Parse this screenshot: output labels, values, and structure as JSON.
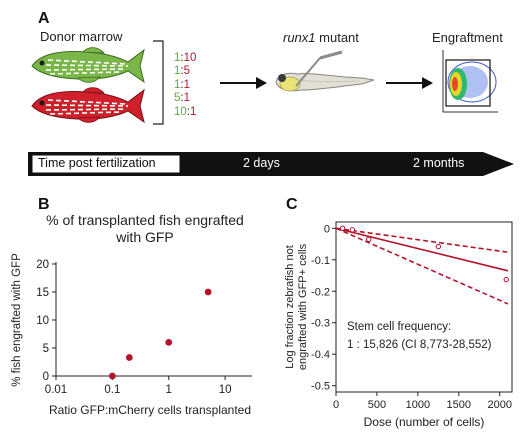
{
  "panel_a": {
    "label": "A",
    "donor_label": "Donor marrow",
    "ratios": [
      {
        "green": "1",
        "red": "10"
      },
      {
        "green": "1",
        "red": "5"
      },
      {
        "green": "1",
        "red": "1"
      },
      {
        "green": "5",
        "red": "1"
      },
      {
        "green": "10",
        "red": "1"
      }
    ],
    "recipient_italic": "runx1",
    "recipient_rest": " mutant",
    "outcome_label": "Engraftment",
    "timeline": {
      "start_label": "Time post fertilization",
      "mid_label": "2 days",
      "end_label": "2 months"
    },
    "colors": {
      "green": "#7ab648",
      "red": "#c0202e",
      "arrow": "#111111"
    }
  },
  "panel_b": {
    "label": "B",
    "title_line1": "% of transplanted fish engrafted",
    "title_line2": "with GFP",
    "chart_data": {
      "type": "scatter",
      "xscale": "log",
      "x_ticks": [
        "0.01",
        "0.1",
        "1",
        "10"
      ],
      "y_ticks": [
        "0",
        "5",
        "10",
        "15",
        "20"
      ],
      "xlim": [
        0.01,
        30
      ],
      "ylim": [
        0,
        20
      ],
      "xlabel": "Ratio GFP:mCherry cells transplanted",
      "ylabel": "% fish engrafted with GFP",
      "points": [
        {
          "x": 0.1,
          "y": 0
        },
        {
          "x": 0.2,
          "y": 3.3
        },
        {
          "x": 1,
          "y": 6
        },
        {
          "x": 5,
          "y": 15
        }
      ],
      "color": "#b5142b"
    }
  },
  "panel_c": {
    "label": "C",
    "chart_data": {
      "type": "line",
      "x_ticks": [
        "0",
        "500",
        "1000",
        "1500",
        "2000"
      ],
      "y_ticks": [
        "0",
        "-0.1",
        "-0.2",
        "-0.3",
        "-0.4",
        "-0.5"
      ],
      "xlim": [
        0,
        2150
      ],
      "ylim": [
        -0.52,
        0.02
      ],
      "xlabel": "Dose (number of cells)",
      "ylabel_line1": "Log fraction zebrafish not",
      "ylabel_line2": "engrafted with GFP+ cells",
      "fit": {
        "x": [
          0,
          2100
        ],
        "y": [
          0,
          -0.135
        ]
      },
      "ci_upper": {
        "x": [
          0,
          2100
        ],
        "y": [
          0,
          -0.076
        ]
      },
      "ci_lower": {
        "x": [
          0,
          2100
        ],
        "y": [
          0,
          -0.24
        ]
      },
      "points": [
        {
          "x": 80,
          "y": 0
        },
        {
          "x": 200,
          "y": -0.005
        },
        {
          "x": 400,
          "y": -0.035
        },
        {
          "x": 1250,
          "y": -0.058
        },
        {
          "x": 2080,
          "y": -0.163
        }
      ],
      "annotation_line1": "Stem cell frequency:",
      "annotation_line2": "1 : 15,826 (CI 8,773-28,552)",
      "color": "#b5142b"
    }
  }
}
